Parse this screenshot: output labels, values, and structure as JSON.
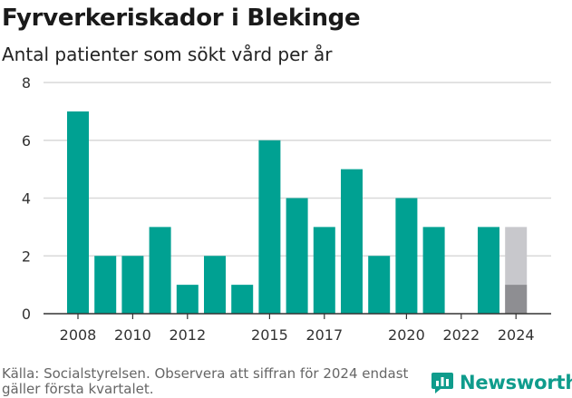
{
  "header": {
    "title": "Fyrverkeriskador i Blekinge",
    "subtitle": "Antal patienter som sökt vård per år"
  },
  "footer": {
    "source": "Källa: Socialstyrelsen. Observera att siffran för 2024 endast gäller första kvartalet.",
    "brand": "Newsworthy"
  },
  "colors": {
    "bar": "#00a192",
    "projected": "#c8c8cc",
    "partial": "#8e8e92",
    "grid": "#d9d9d9",
    "axis": "#333333",
    "brand": "#0f9c8c"
  },
  "chart_data": {
    "type": "bar",
    "categories": [
      "2008",
      "2009",
      "2010",
      "2011",
      "2012",
      "2013",
      "2014",
      "2015",
      "2016",
      "2017",
      "2018",
      "2019",
      "2020",
      "2021",
      "2022",
      "2023",
      "2024"
    ],
    "series": [
      {
        "values": [
          7,
          2,
          2,
          3,
          1,
          2,
          1,
          6,
          4,
          3,
          5,
          2,
          4,
          3,
          0,
          3,
          null
        ]
      }
    ],
    "partial_year": {
      "category": "2024",
      "value": 1,
      "faded_total": 3
    },
    "x_tick_labels": [
      "2008",
      "2010",
      "2012",
      "2015",
      "2017",
      "2020",
      "2022",
      "2024"
    ],
    "y_ticks": [
      0,
      2,
      4,
      6,
      8
    ],
    "ylim": [
      0,
      8
    ],
    "grid": true,
    "legend": "none",
    "xlabel": "",
    "ylabel": ""
  }
}
